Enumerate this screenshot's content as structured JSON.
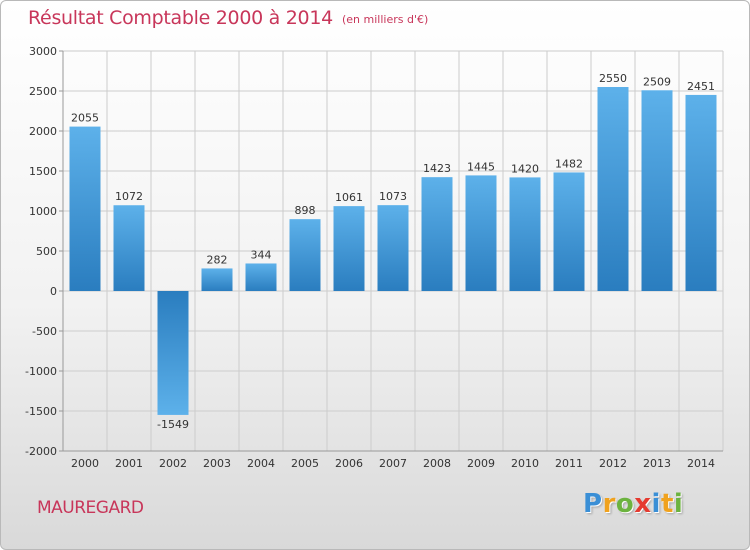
{
  "header": {
    "title": "Résultat Comptable 2000 à 2014",
    "subtitle": "(en milliers d'€)"
  },
  "footer": {
    "commune": "MAUREGARD",
    "logo_letters": [
      {
        "char": "P",
        "color": "#3a8fd6"
      },
      {
        "char": "r",
        "color": "#f0a21e"
      },
      {
        "char": "o",
        "color": "#6cb33f"
      },
      {
        "char": "x",
        "color": "#e53a2f"
      },
      {
        "char": "i",
        "color": "#3a8fd6"
      },
      {
        "char": "t",
        "color": "#f0a21e"
      },
      {
        "char": "i",
        "color": "#6cb33f"
      }
    ]
  },
  "colors": {
    "accent": "#c8365a",
    "bar_light": "#5db1ea",
    "bar_dark": "#2a7dbf",
    "grid": "#cccccc",
    "text": "#333333"
  },
  "chart_data": {
    "type": "bar",
    "categories": [
      "2000",
      "2001",
      "2002",
      "2003",
      "2004",
      "2005",
      "2006",
      "2007",
      "2008",
      "2009",
      "2010",
      "2011",
      "2012",
      "2013",
      "2014"
    ],
    "values": [
      2055,
      1072,
      -1549,
      282,
      344,
      898,
      1061,
      1073,
      1423,
      1445,
      1420,
      1482,
      2550,
      2509,
      2451
    ],
    "labels": [
      "2055",
      "1072",
      "-1549",
      "282",
      "344",
      "898",
      "1061",
      "1073",
      "1423",
      "1445",
      "1420",
      "1482",
      "2550",
      "2509",
      "2451"
    ],
    "title": "Résultat Comptable 2000 à 2014",
    "xlabel": "",
    "ylabel": "",
    "ylim": [
      -2000,
      3000
    ],
    "yticks": [
      3000,
      2500,
      2000,
      1500,
      1000,
      500,
      0,
      -500,
      -1000,
      -1500,
      -2000
    ],
    "ytick_labels": [
      "3000",
      "2500",
      "2000",
      "1500",
      "1000",
      "500",
      "0",
      "-500",
      "-1000",
      "-1500",
      "-2000"
    ],
    "grid": true,
    "legend": "none"
  }
}
